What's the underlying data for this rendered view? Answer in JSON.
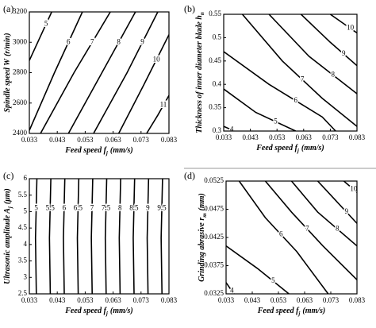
{
  "chart_data": [
    {
      "type": "contour",
      "panel": "(a)",
      "xlabel": "Feed speed f",
      "xlabel_sub": "j",
      "xlabel_unit": "(mm/s)",
      "ylabel": "Spindle speed W",
      "ylabel_sub": "",
      "ylabel_unit": "(r/min)",
      "xlim": [
        0.033,
        0.083
      ],
      "xticks": [
        0.033,
        0.043,
        0.053,
        0.063,
        0.073,
        0.083
      ],
      "ylim": [
        2400,
        3200
      ],
      "yticks": [
        2400,
        2600,
        2800,
        3000,
        3200
      ],
      "series": [
        {
          "name": "5",
          "x": [
            0.033,
            0.037,
            0.041
          ],
          "y": [
            2880,
            3040,
            3200
          ]
        },
        {
          "name": "6",
          "x": [
            0.033,
            0.042,
            0.052
          ],
          "y": [
            2420,
            2800,
            3200
          ]
        },
        {
          "name": "7",
          "x": [
            0.037,
            0.049,
            0.062
          ],
          "y": [
            2400,
            2800,
            3200
          ]
        },
        {
          "name": "8",
          "x": [
            0.047,
            0.059,
            0.071
          ],
          "y": [
            2400,
            2800,
            3200
          ]
        },
        {
          "name": "9",
          "x": [
            0.056,
            0.068,
            0.079
          ],
          "y": [
            2400,
            2800,
            3200
          ]
        },
        {
          "name": "10",
          "x": [
            0.065,
            0.074,
            0.083
          ],
          "y": [
            2400,
            2720,
            3050
          ]
        },
        {
          "name": "11",
          "x": [
            0.075,
            0.079,
            0.083
          ],
          "y": [
            2400,
            2520,
            2650
          ]
        }
      ]
    },
    {
      "type": "contour",
      "panel": "(b)",
      "xlabel": "Feed speed f",
      "xlabel_sub": "j",
      "xlabel_unit": "(mm/s)",
      "ylabel": "Thickness of inner diameter blade h",
      "ylabel_sub": "n",
      "ylabel_unit": "",
      "xlim": [
        0.033,
        0.083
      ],
      "xticks": [
        0.033,
        0.043,
        0.053,
        0.063,
        0.073,
        0.083
      ],
      "ylim": [
        0.3,
        0.55
      ],
      "yticks": [
        0.3,
        0.35,
        0.4,
        0.45,
        0.5,
        0.55
      ],
      "series": [
        {
          "name": "4",
          "x": [
            0.033,
            0.035,
            0.037
          ],
          "y": [
            0.31,
            0.305,
            0.3
          ]
        },
        {
          "name": "5",
          "x": [
            0.033,
            0.045,
            0.06
          ],
          "y": [
            0.39,
            0.34,
            0.3
          ]
        },
        {
          "name": "6",
          "x": [
            0.033,
            0.05,
            0.07,
            0.075
          ],
          "y": [
            0.47,
            0.4,
            0.33,
            0.3
          ]
        },
        {
          "name": "7",
          "x": [
            0.04,
            0.055,
            0.07,
            0.083
          ],
          "y": [
            0.55,
            0.45,
            0.37,
            0.31
          ]
        },
        {
          "name": "8",
          "x": [
            0.05,
            0.065,
            0.083
          ],
          "y": [
            0.55,
            0.46,
            0.38
          ]
        },
        {
          "name": "9",
          "x": [
            0.062,
            0.073,
            0.083
          ],
          "y": [
            0.55,
            0.49,
            0.44
          ]
        },
        {
          "name": "10",
          "x": [
            0.073,
            0.078,
            0.083
          ],
          "y": [
            0.55,
            0.53,
            0.51
          ]
        }
      ]
    },
    {
      "type": "contour",
      "panel": "(c)",
      "xlabel": "Feed speed f",
      "xlabel_sub": "j",
      "xlabel_unit": "(mm/s)",
      "ylabel": "Ultrasonic amplitude A",
      "ylabel_sub": "j",
      "ylabel_unit": "(μm)",
      "xlim": [
        0.033,
        0.083
      ],
      "xticks": [
        0.033,
        0.043,
        0.053,
        0.063,
        0.073,
        0.083
      ],
      "ylim": [
        2.5,
        6
      ],
      "yticks": [
        2.5,
        3,
        3.5,
        4,
        4.5,
        5,
        5.5,
        6
      ],
      "series": [
        {
          "name": "5",
          "x": [
            0.0355,
            0.0352,
            0.0357
          ],
          "y": [
            2.5,
            4.2,
            6
          ]
        },
        {
          "name": "5.5",
          "x": [
            0.0405,
            0.0402,
            0.0407
          ],
          "y": [
            2.5,
            4.2,
            6
          ]
        },
        {
          "name": "6",
          "x": [
            0.0455,
            0.0452,
            0.0457
          ],
          "y": [
            2.5,
            4.2,
            6
          ]
        },
        {
          "name": "6.5",
          "x": [
            0.0505,
            0.0502,
            0.0507
          ],
          "y": [
            2.5,
            4.2,
            6
          ]
        },
        {
          "name": "7",
          "x": [
            0.0555,
            0.0552,
            0.0557
          ],
          "y": [
            2.5,
            4.2,
            6
          ]
        },
        {
          "name": "7.5",
          "x": [
            0.0605,
            0.0602,
            0.0607
          ],
          "y": [
            2.5,
            4.2,
            6
          ]
        },
        {
          "name": "8",
          "x": [
            0.0655,
            0.0652,
            0.0657
          ],
          "y": [
            2.5,
            4.2,
            6
          ]
        },
        {
          "name": "8.5",
          "x": [
            0.0705,
            0.0702,
            0.0707
          ],
          "y": [
            2.5,
            4.2,
            6
          ]
        },
        {
          "name": "9",
          "x": [
            0.0755,
            0.0752,
            0.0757
          ],
          "y": [
            2.5,
            4.2,
            6
          ]
        },
        {
          "name": "9.5",
          "x": [
            0.0805,
            0.0802,
            0.0807
          ],
          "y": [
            2.5,
            4.2,
            6
          ]
        }
      ]
    },
    {
      "type": "contour",
      "panel": "(d)",
      "xlabel": "Feed speed f",
      "xlabel_sub": "j",
      "xlabel_unit": "(mm/s)",
      "ylabel": "Grinding abrasive r",
      "ylabel_sub": "m",
      "ylabel_unit": "(mm)",
      "xlim": [
        0.033,
        0.083
      ],
      "xticks": [
        0.033,
        0.043,
        0.053,
        0.063,
        0.073,
        0.083
      ],
      "ylim": [
        0.0325,
        0.0525
      ],
      "yticks": [
        0.0325,
        0.0375,
        0.0425,
        0.0475,
        0.0525
      ],
      "series": [
        {
          "name": "4",
          "x": [
            0.033,
            0.0345,
            0.036
          ],
          "y": [
            0.0345,
            0.0335,
            0.0325
          ]
        },
        {
          "name": "5",
          "x": [
            0.033,
            0.045,
            0.057
          ],
          "y": [
            0.041,
            0.037,
            0.0325
          ]
        },
        {
          "name": "6",
          "x": [
            0.038,
            0.048,
            0.06,
            0.072
          ],
          "y": [
            0.0525,
            0.046,
            0.04,
            0.0325
          ]
        },
        {
          "name": "7",
          "x": [
            0.048,
            0.058,
            0.07,
            0.083
          ],
          "y": [
            0.0525,
            0.047,
            0.041,
            0.035
          ]
        },
        {
          "name": "8",
          "x": [
            0.058,
            0.068,
            0.083
          ],
          "y": [
            0.0525,
            0.047,
            0.041
          ]
        },
        {
          "name": "9",
          "x": [
            0.068,
            0.075,
            0.083
          ],
          "y": [
            0.0525,
            0.049,
            0.045
          ]
        },
        {
          "name": "10",
          "x": [
            0.078,
            0.0805,
            0.083
          ],
          "y": [
            0.0525,
            0.0515,
            0.0505
          ]
        }
      ]
    }
  ]
}
